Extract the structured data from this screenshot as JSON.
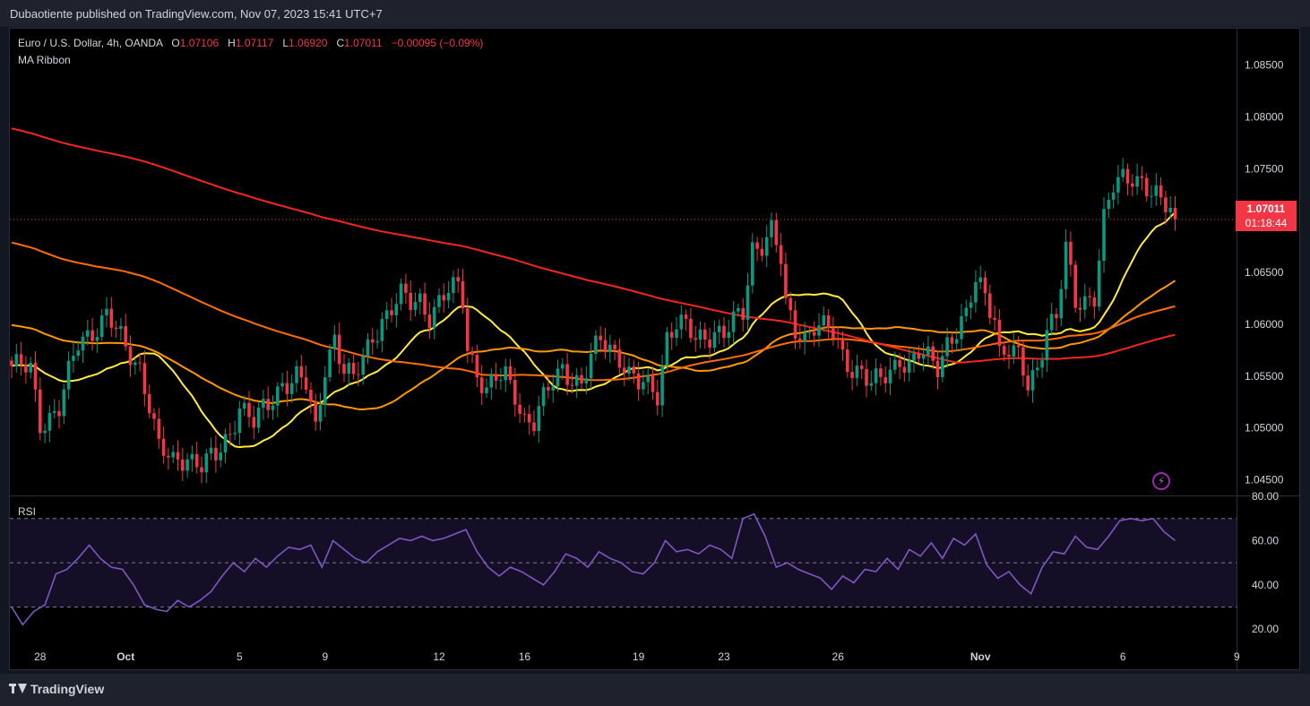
{
  "header": {
    "published": "Dubaotiente published on TradingView.com, Nov 07, 2023 15:41 UTC+7"
  },
  "legend": {
    "symbol": "Euro / U.S. Dollar, 4h, OANDA",
    "o_label": "O",
    "o_value": "1.07106",
    "h_label": "H",
    "h_value": "1.07117",
    "l_label": "L",
    "l_value": "1.06920",
    "c_label": "C",
    "c_value": "1.07011",
    "change": "−0.00095 (−0.09%)",
    "indicator": "MA Ribbon"
  },
  "price_tag": {
    "price": "1.07011",
    "countdown": "01:18:44"
  },
  "rsi_panel": {
    "label": "RSI"
  },
  "footer": {
    "brand": "TradingView"
  },
  "icons": {
    "alert": "lightning-icon",
    "brand": "tradingview-logo-icon"
  },
  "colors": {
    "up": "#089981",
    "down": "#f23645",
    "ma1": "#ffeb3b",
    "ma2": "#ff9800",
    "ma3": "#ff6d00",
    "ma4": "#f5261b",
    "rsi": "#7e57c2"
  },
  "chart_data": [
    {
      "type": "candlestick",
      "title": "Euro / U.S. Dollar, 4h, OANDA",
      "ylim": [
        1.0435,
        1.0885
      ],
      "yticks": [
        "1.08500",
        "1.08000",
        "1.07500",
        "1.07000",
        "1.06500",
        "1.06000",
        "1.05500",
        "1.05000",
        "1.04500"
      ],
      "xticks": [
        {
          "label": "28",
          "index": 6
        },
        {
          "label": "Oct",
          "index": 24
        },
        {
          "label": "5",
          "index": 48
        },
        {
          "label": "9",
          "index": 66
        },
        {
          "label": "12",
          "index": 90
        },
        {
          "label": "16",
          "index": 108
        },
        {
          "label": "19",
          "index": 132
        },
        {
          "label": "23",
          "index": 150
        },
        {
          "label": "26",
          "index": 174
        },
        {
          "label": "Nov",
          "index": 204
        },
        {
          "label": "6",
          "index": 234
        },
        {
          "label": "9",
          "index": 258
        }
      ],
      "last_price": 1.07011,
      "n_candles": 246,
      "close_keypoints": [
        [
          0,
          1.056
        ],
        [
          4,
          1.0555
        ],
        [
          6,
          1.0505
        ],
        [
          10,
          1.052
        ],
        [
          14,
          1.058
        ],
        [
          17,
          1.0595
        ],
        [
          20,
          1.061
        ],
        [
          24,
          1.0575
        ],
        [
          27,
          1.056
        ],
        [
          29,
          1.0525
        ],
        [
          31,
          1.048
        ],
        [
          34,
          1.0465
        ],
        [
          37,
          1.0475
        ],
        [
          40,
          1.0465
        ],
        [
          43,
          1.047
        ],
        [
          46,
          1.0495
        ],
        [
          48,
          1.0525
        ],
        [
          51,
          1.0505
        ],
        [
          54,
          1.052
        ],
        [
          57,
          1.0545
        ],
        [
          60,
          1.055
        ],
        [
          62,
          1.054
        ],
        [
          64,
          1.0495
        ],
        [
          66,
          1.056
        ],
        [
          68,
          1.059
        ],
        [
          70,
          1.0555
        ],
        [
          72,
          1.0545
        ],
        [
          74,
          1.0565
        ],
        [
          76,
          1.059
        ],
        [
          78,
          1.0605
        ],
        [
          80,
          1.0615
        ],
        [
          82,
          1.0625
        ],
        [
          84,
          1.062
        ],
        [
          86,
          1.0625
        ],
        [
          88,
          1.061
        ],
        [
          90,
          1.062
        ],
        [
          92,
          1.063
        ],
        [
          94,
          1.0635
        ],
        [
          95,
          1.0625
        ],
        [
          96,
          1.058
        ],
        [
          98,
          1.0555
        ],
        [
          100,
          1.0535
        ],
        [
          102,
          1.0545
        ],
        [
          104,
          1.055
        ],
        [
          106,
          1.0535
        ],
        [
          108,
          1.051
        ],
        [
          110,
          1.0505
        ],
        [
          112,
          1.0525
        ],
        [
          114,
          1.0545
        ],
        [
          116,
          1.056
        ],
        [
          118,
          1.055
        ],
        [
          120,
          1.054
        ],
        [
          122,
          1.0565
        ],
        [
          124,
          1.0585
        ],
        [
          126,
          1.058
        ],
        [
          128,
          1.057
        ],
        [
          130,
          1.055
        ],
        [
          132,
          1.054
        ],
        [
          134,
          1.054
        ],
        [
          136,
          1.0535
        ],
        [
          138,
          1.059
        ],
        [
          140,
          1.06
        ],
        [
          142,
          1.0595
        ],
        [
          144,
          1.0585
        ],
        [
          146,
          1.059
        ],
        [
          148,
          1.0595
        ],
        [
          150,
          1.059
        ],
        [
          152,
          1.06
        ],
        [
          154,
          1.061
        ],
        [
          156,
          1.0675
        ],
        [
          158,
          1.068
        ],
        [
          160,
          1.069
        ],
        [
          162,
          1.066
        ],
        [
          163,
          1.0615
        ],
        [
          165,
          1.0595
        ],
        [
          167,
          1.059
        ],
        [
          169,
          1.06
        ],
        [
          171,
          1.0595
        ],
        [
          173,
          1.059
        ],
        [
          175,
          1.057
        ],
        [
          177,
          1.056
        ],
        [
          179,
          1.0555
        ],
        [
          181,
          1.054
        ],
        [
          183,
          1.0545
        ],
        [
          185,
          1.0555
        ],
        [
          187,
          1.057
        ],
        [
          189,
          1.056
        ],
        [
          191,
          1.057
        ],
        [
          193,
          1.0565
        ],
        [
          195,
          1.056
        ],
        [
          197,
          1.0585
        ],
        [
          199,
          1.0595
        ],
        [
          201,
          1.0605
        ],
        [
          203,
          1.064
        ],
        [
          205,
          1.063
        ],
        [
          207,
          1.061
        ],
        [
          208,
          1.0575
        ],
        [
          210,
          1.0575
        ],
        [
          212,
          1.0565
        ],
        [
          214,
          1.054
        ],
        [
          216,
          1.056
        ],
        [
          218,
          1.06
        ],
        [
          220,
          1.0605
        ],
        [
          222,
          1.067
        ],
        [
          224,
          1.062
        ],
        [
          226,
          1.0625
        ],
        [
          228,
          1.063
        ],
        [
          230,
          1.07
        ],
        [
          232,
          1.073
        ],
        [
          234,
          1.074
        ],
        [
          236,
          1.0745
        ],
        [
          238,
          1.074
        ],
        [
          240,
          1.0725
        ],
        [
          242,
          1.0715
        ],
        [
          244,
          1.071
        ],
        [
          245,
          1.07011
        ]
      ]
    },
    {
      "type": "line",
      "title": "RSI",
      "ylim": [
        12,
        80
      ],
      "yticks": [
        "80.00",
        "60.00",
        "40.00",
        "20.00"
      ],
      "bands": {
        "upper": 70,
        "middle": 50,
        "lower": 30
      },
      "values": [
        30,
        22,
        28,
        31,
        45,
        47,
        52,
        58,
        52,
        48,
        47,
        40,
        31,
        29,
        28,
        33,
        30,
        33,
        37,
        44,
        50,
        46,
        52,
        48,
        53,
        57,
        56,
        58,
        48,
        60,
        56,
        52,
        50,
        55,
        58,
        61,
        60,
        62,
        60,
        61,
        63,
        65,
        55,
        48,
        44,
        48,
        46,
        43,
        40,
        46,
        54,
        52,
        48,
        55,
        52,
        50,
        46,
        45,
        50,
        60,
        55,
        56,
        54,
        58,
        56,
        52,
        70,
        72,
        62,
        48,
        50,
        47,
        45,
        43,
        38,
        44,
        41,
        47,
        46,
        52,
        47,
        56,
        53,
        59,
        52,
        61,
        58,
        63,
        49,
        43,
        46,
        40,
        36,
        48,
        55,
        54,
        62,
        57,
        56,
        62,
        69,
        70,
        69,
        70,
        64,
        60
      ]
    }
  ]
}
